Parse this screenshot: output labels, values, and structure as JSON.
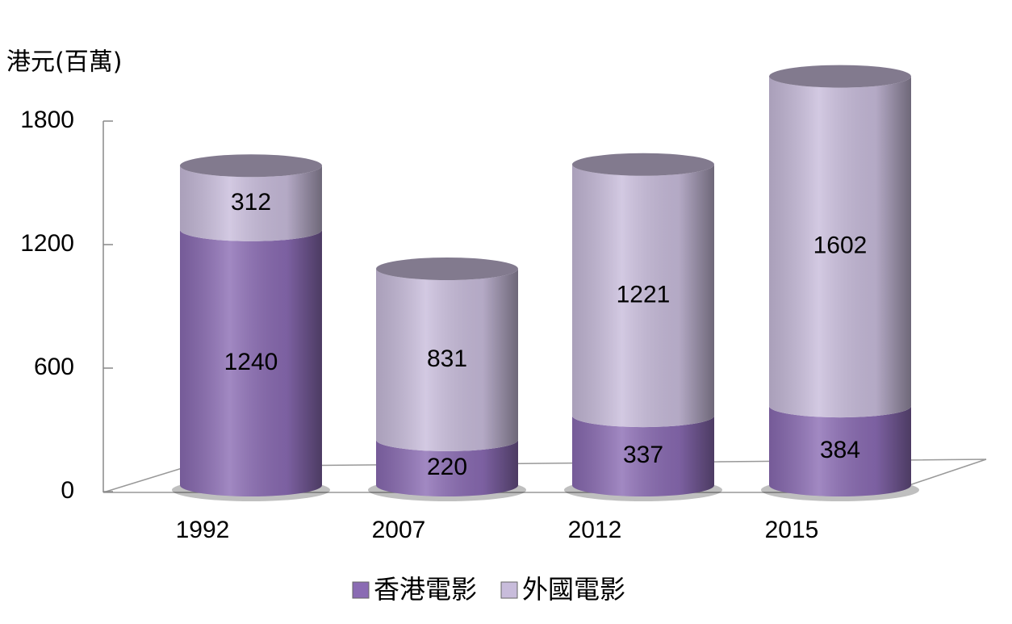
{
  "chart_data": {
    "type": "bar",
    "stacked": true,
    "y_label": "港元(百萬)",
    "categories": [
      "1992",
      "2007",
      "2012",
      "2015"
    ],
    "series": [
      {
        "name": "香港電影",
        "color": "#8a6bb3",
        "values": [
          1240,
          220,
          337,
          384
        ]
      },
      {
        "name": "外國電影",
        "color": "#c8bcdb",
        "values": [
          312,
          831,
          1221,
          1602
        ]
      }
    ],
    "ylim": [
      0,
      1800
    ],
    "yticks": [
      0,
      600,
      1200,
      1800
    ]
  }
}
